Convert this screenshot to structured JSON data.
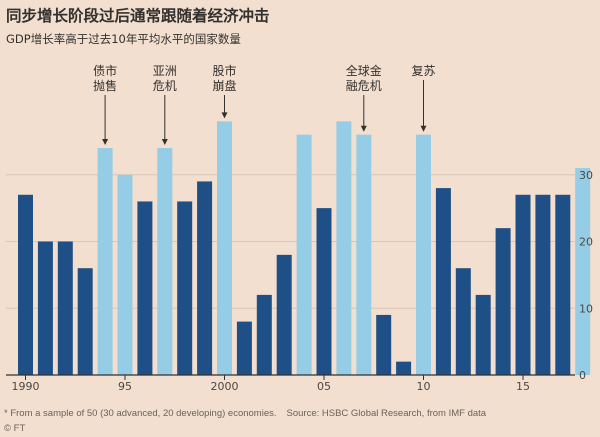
{
  "title": "同步增长阶段过后通常跟随着经济冲击",
  "subtitle": "GDP增长率高于过去10年平均水平的国家数量",
  "footnote": "* From a sample of 50 (30 advanced, 20 developing) economies.",
  "source": "Source: HSBC Global Research, from IMF data",
  "brand": "© FT",
  "colors": {
    "dark_bar": "#1e4f86",
    "light_bar": "#96cde6",
    "background": "#f2dfcf",
    "grid": "#d9c6b6"
  },
  "chart_data": {
    "type": "bar",
    "x": [
      1990,
      1991,
      1992,
      1993,
      1994,
      1995,
      1996,
      1997,
      1998,
      1999,
      2000,
      2001,
      2002,
      2003,
      2004,
      2005,
      2006,
      2007,
      2008,
      2009,
      2010,
      2011,
      2012,
      2013,
      2014,
      2015,
      2016,
      2017,
      2018
    ],
    "values": [
      27,
      20,
      20,
      16,
      34,
      30,
      26,
      34,
      26,
      29,
      38,
      8,
      12,
      18,
      36,
      25,
      38,
      36,
      9,
      2,
      36,
      28,
      16,
      12,
      22,
      27,
      27,
      27,
      31
    ],
    "highlight": [
      false,
      false,
      false,
      false,
      true,
      true,
      false,
      true,
      false,
      false,
      true,
      false,
      false,
      false,
      true,
      false,
      true,
      true,
      false,
      false,
      true,
      false,
      false,
      false,
      false,
      false,
      false,
      false,
      true
    ],
    "x_tick_labels": [
      {
        "year": 1990,
        "label": "1990"
      },
      {
        "year": 1995,
        "label": "95"
      },
      {
        "year": 2000,
        "label": "2000"
      },
      {
        "year": 2005,
        "label": "05"
      },
      {
        "year": 2010,
        "label": "10"
      },
      {
        "year": 2015,
        "label": "15"
      }
    ],
    "y_ticks": [
      0,
      10,
      20,
      30
    ],
    "ylim": [
      0,
      40
    ],
    "grid": true,
    "y_axis_side": "right",
    "annotations": [
      {
        "year": 1994,
        "lines": [
          "债市",
          "抛售"
        ]
      },
      {
        "year": 1997,
        "lines": [
          "亚洲",
          "危机"
        ]
      },
      {
        "year": 2000,
        "lines": [
          "股市",
          "崩盘"
        ]
      },
      {
        "year": 2007,
        "lines": [
          "全球金",
          "融危机"
        ]
      },
      {
        "year": 2010,
        "lines": [
          "复苏"
        ]
      }
    ]
  }
}
